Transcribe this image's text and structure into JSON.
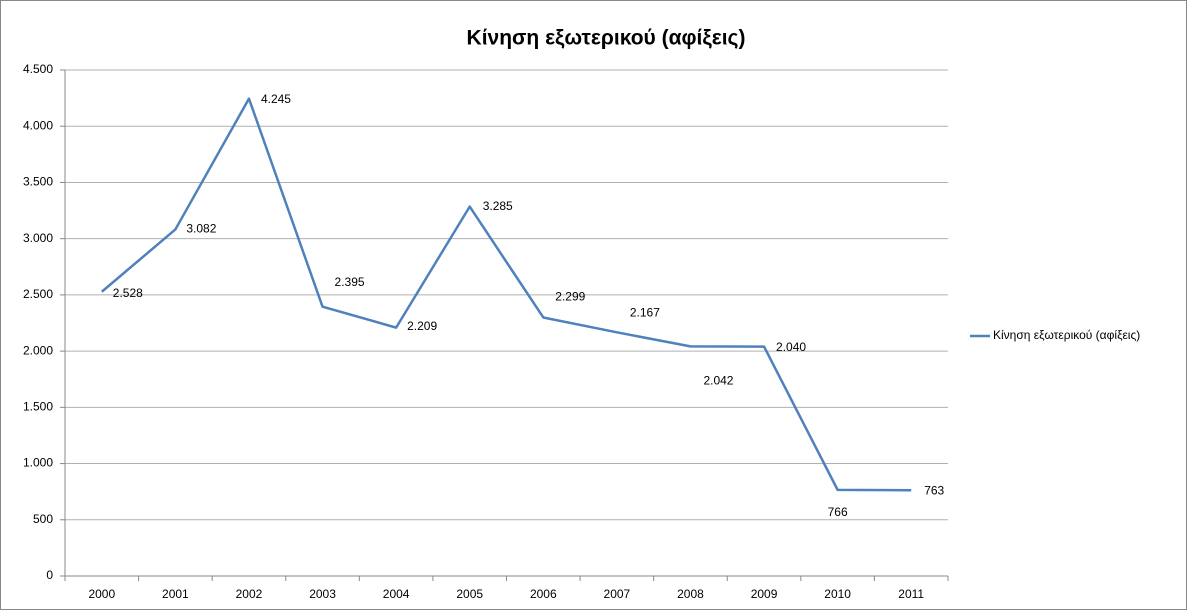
{
  "chart_data": {
    "type": "line",
    "title": "Κίνηση εξωτερικού (αφίξεις)",
    "categories": [
      "2000",
      "2001",
      "2002",
      "2003",
      "2004",
      "2005",
      "2006",
      "2007",
      "2008",
      "2009",
      "2010",
      "2011"
    ],
    "series": [
      {
        "name": "Κίνηση εξωτερικού (αφίξεις)",
        "color": "#4f81bd",
        "values": [
          2528,
          3082,
          4245,
          2395,
          2209,
          3285,
          2299,
          2167,
          2042,
          2040,
          766,
          763
        ],
        "value_labels": [
          "2.528",
          "3.082",
          "4.245",
          "2.395",
          "2.209",
          "3.285",
          "2.299",
          "2.167",
          "2.042",
          "2.040",
          "766",
          "763"
        ]
      }
    ],
    "ylim": [
      0,
      4500
    ],
    "yticks": [
      0,
      500,
      {
        "value": 1000,
        "label": "1.000"
      },
      {
        "value": 1500,
        "label": "1.500"
      },
      {
        "value": 2000,
        "label": "2.000"
      },
      {
        "value": 2500,
        "label": "2.500"
      },
      {
        "value": 3000,
        "label": "3.000"
      },
      {
        "value": 3500,
        "label": "3.500"
      },
      {
        "value": 4000,
        "label": "4.000"
      },
      {
        "value": 4500,
        "label": "4.500"
      }
    ],
    "grid": true,
    "legend": "right"
  }
}
